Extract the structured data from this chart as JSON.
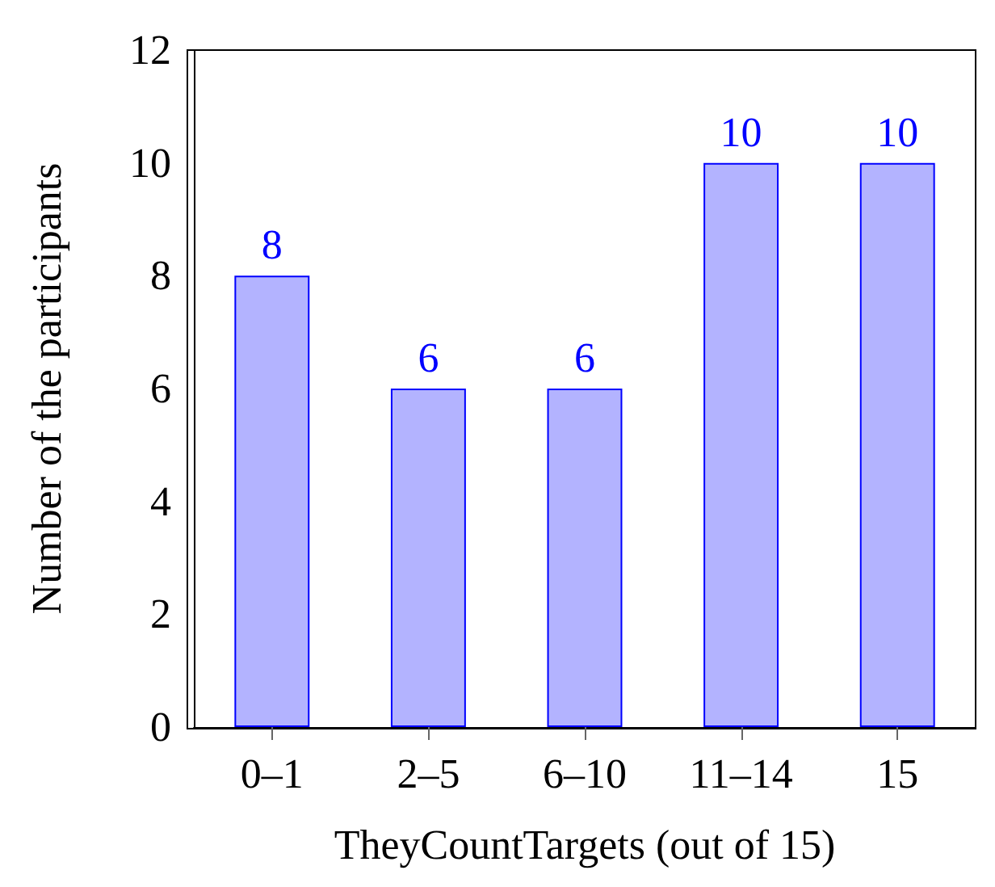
{
  "chart_data": {
    "type": "bar",
    "xlabel": "TheyCountTargets (out of 15)",
    "ylabel": "Number of the participants",
    "categories": [
      "0–1",
      "2–5",
      "6–10",
      "11–14",
      "15"
    ],
    "series": [
      {
        "color": "#b3b3ff",
        "values": [
          8,
          6,
          6,
          10,
          10
        ]
      }
    ],
    "ylim": [
      0,
      12
    ],
    "yticks": [
      0,
      2,
      4,
      6,
      8,
      10,
      12
    ],
    "grid": false,
    "data_labels": true
  }
}
